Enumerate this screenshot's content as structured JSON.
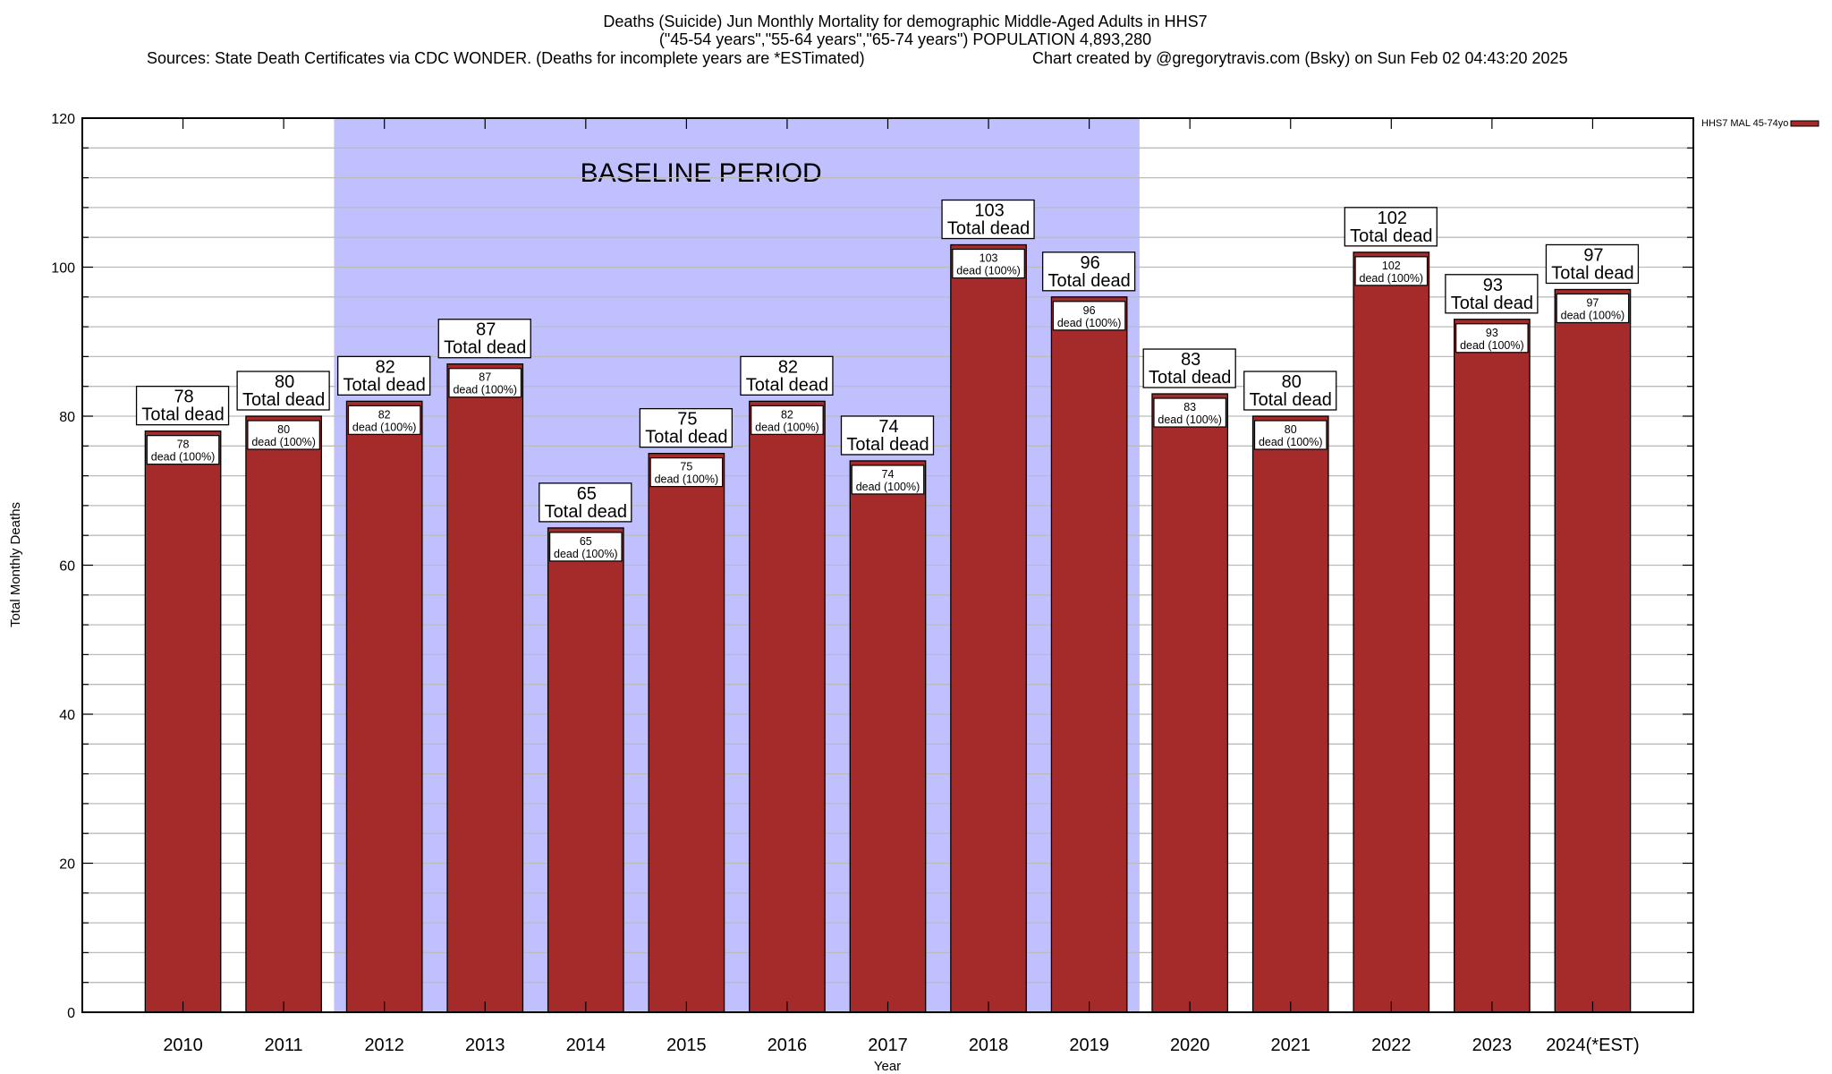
{
  "chart_data": {
    "type": "bar",
    "title_lines": [
      "Deaths (Suicide) Jun Monthly Mortality for demographic Middle-Aged Adults in HHS7",
      "(\"45-54 years\",\"55-64 years\",\"65-74 years\") POPULATION 4,893,280"
    ],
    "sources": "Sources: State Death Certificates via CDC WONDER. (Deaths for incomplete years are *ESTimated)",
    "credit": "Chart created by @gregorytravis.com (Bsky) on Sun Feb 02 04:43:20 2025",
    "xlabel": "Year",
    "ylabel": "Total Monthly Deaths",
    "ylim": [
      0,
      120
    ],
    "yticks": [
      0,
      20,
      40,
      60,
      80,
      100,
      120
    ],
    "minor_grid_step": 4,
    "grid": true,
    "categories": [
      "2010",
      "2011",
      "2012",
      "2013",
      "2014",
      "2015",
      "2016",
      "2017",
      "2018",
      "2019",
      "2020",
      "2021",
      "2022",
      "2023",
      "2024(*EST)"
    ],
    "series": [
      {
        "name": "HHS7 MAL 45-74yo",
        "color": "#a52a2a",
        "values": [
          78,
          80,
          82,
          87,
          65,
          75,
          82,
          74,
          103,
          96,
          83,
          80,
          102,
          93,
          97
        ]
      }
    ],
    "top_label_suffix": "Total dead",
    "inner_label_suffix": "dead (100%)",
    "shaded_region": {
      "label": "BASELINE PERIOD",
      "from_category": "2012",
      "to_category": "2019",
      "color": "#c0c0ff"
    },
    "legend_placement": "top-right",
    "grid_color": "#bbbbbb"
  }
}
